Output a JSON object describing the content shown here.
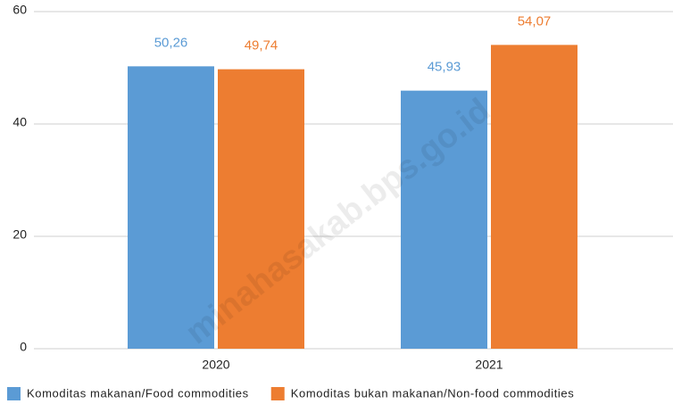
{
  "chart_data": {
    "type": "bar",
    "categories": [
      "2020",
      "2021"
    ],
    "series": [
      {
        "name": "Komoditas makanan/Food commodities",
        "color": "#5b9bd5",
        "values": [
          50.26,
          45.93
        ],
        "value_labels": [
          "50,26",
          "45,93"
        ]
      },
      {
        "name": "Komoditas bukan makanan/Non-food commodities",
        "color": "#ed7d31",
        "values": [
          49.74,
          54.07
        ],
        "value_labels": [
          "49,74",
          "54,07"
        ]
      }
    ],
    "ylim": [
      0,
      60
    ],
    "yticks": [
      0,
      20,
      40,
      60
    ],
    "grid": true,
    "legend": "bottom",
    "watermark": "minahasakab.bps.go.id"
  }
}
